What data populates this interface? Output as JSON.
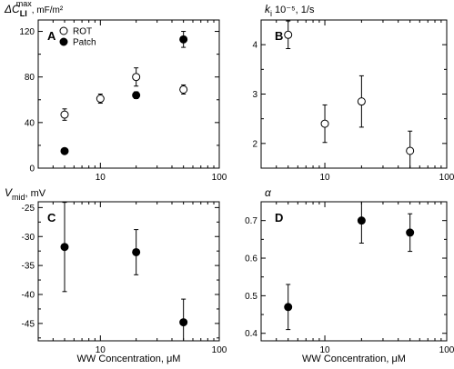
{
  "chart_data": [
    {
      "panel": "A",
      "type": "scatter",
      "xscale": "log",
      "xlim": [
        3,
        100
      ],
      "ylim": [
        0,
        130
      ],
      "xticks": [
        10,
        100
      ],
      "yticks": [
        0,
        40,
        80,
        120
      ],
      "ylabel": {
        "prefix": "ΔC",
        "sub": "LI",
        "sup": "max",
        "suffix": ", mF/m²"
      },
      "xlabel": "",
      "legend": {
        "position": "top-left",
        "entries": [
          "ROT",
          "Patch"
        ]
      },
      "series": [
        {
          "name": "ROT",
          "marker": "open",
          "x": [
            5,
            10,
            20,
            50
          ],
          "y": [
            47,
            61,
            80,
            69
          ],
          "err": [
            5,
            4,
            8,
            4
          ]
        },
        {
          "name": "Patch",
          "marker": "filled",
          "x": [
            5,
            20,
            50
          ],
          "y": [
            15,
            64,
            113
          ],
          "err": [
            2,
            3,
            7
          ]
        }
      ]
    },
    {
      "panel": "B",
      "type": "scatter",
      "xscale": "log",
      "xlim": [
        3,
        100
      ],
      "ylim": [
        1.5,
        4.5
      ],
      "xticks": [
        10,
        100
      ],
      "yticks": [
        2,
        3,
        4
      ],
      "ylabel": {
        "prefix": "k",
        "sub": "i",
        "suffix": " 10⁻⁵, 1/s"
      },
      "xlabel": "",
      "series": [
        {
          "name": "",
          "marker": "open",
          "x": [
            5,
            10,
            20,
            50
          ],
          "y": [
            4.2,
            2.4,
            2.85,
            1.85
          ],
          "err": [
            0.28,
            0.38,
            0.52,
            0.4
          ]
        }
      ]
    },
    {
      "panel": "C",
      "type": "scatter",
      "xscale": "log",
      "xlim": [
        3,
        100
      ],
      "ylim": [
        -48,
        -24
      ],
      "xticks": [
        10,
        100
      ],
      "yticks": [
        -45,
        -40,
        -35,
        -30,
        -25
      ],
      "ylabel": {
        "prefix": "V",
        "sub": "mid",
        "suffix": ", mV"
      },
      "xlabel": "WW Concentration, μM",
      "series": [
        {
          "name": "",
          "marker": "filled",
          "x": [
            5,
            20,
            50
          ],
          "y": [
            -31.8,
            -32.7,
            -44.8
          ],
          "err": [
            7.7,
            3.9,
            4
          ]
        }
      ]
    },
    {
      "panel": "D",
      "type": "scatter",
      "xscale": "log",
      "xlim": [
        3,
        100
      ],
      "ylim": [
        0.38,
        0.75
      ],
      "xticks": [
        10,
        100
      ],
      "yticks": [
        0.4,
        0.5,
        0.6,
        0.7
      ],
      "ylabel": {
        "prefix": "α"
      },
      "xlabel": "WW Concentration, μM",
      "series": [
        {
          "name": "",
          "marker": "filled",
          "x": [
            5,
            20,
            50
          ],
          "y": [
            0.47,
            0.7,
            0.668
          ],
          "err": [
            0.06,
            0.06,
            0.05
          ]
        }
      ]
    }
  ]
}
